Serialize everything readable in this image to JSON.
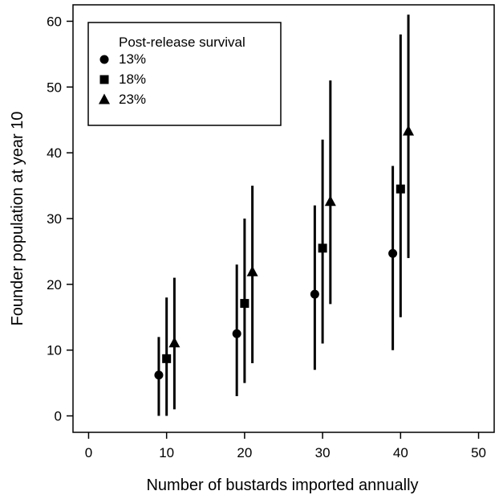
{
  "chart_data": {
    "type": "scatter",
    "xlabel": "Number of bustards imported annually",
    "ylabel": "Founder population at year 10",
    "xlim": [
      -2,
      52
    ],
    "ylim": [
      -2.5,
      62.5
    ],
    "xticks": [
      0,
      10,
      20,
      30,
      40,
      50
    ],
    "yticks": [
      0,
      10,
      20,
      30,
      40,
      50,
      60
    ],
    "legend_title": "Post-release survival",
    "legend_position": "top-left",
    "grid": false,
    "series": [
      {
        "name": "13%",
        "marker": "circle",
        "points": [
          {
            "x": 9,
            "y": 6.2,
            "low": 0,
            "high": 12
          },
          {
            "x": 19,
            "y": 12.5,
            "low": 3,
            "high": 23
          },
          {
            "x": 29,
            "y": 18.5,
            "low": 7,
            "high": 32
          },
          {
            "x": 39,
            "y": 24.7,
            "low": 10,
            "high": 38
          }
        ]
      },
      {
        "name": "18%",
        "marker": "square",
        "points": [
          {
            "x": 10,
            "y": 8.7,
            "low": 0,
            "high": 18
          },
          {
            "x": 20,
            "y": 17.1,
            "low": 5,
            "high": 30
          },
          {
            "x": 30,
            "y": 25.5,
            "low": 11,
            "high": 42
          },
          {
            "x": 40,
            "y": 34.5,
            "low": 15,
            "high": 58
          }
        ]
      },
      {
        "name": "23%",
        "marker": "triangle",
        "points": [
          {
            "x": 11,
            "y": 11.1,
            "low": 1,
            "high": 21
          },
          {
            "x": 21,
            "y": 21.9,
            "low": 8,
            "high": 35
          },
          {
            "x": 31,
            "y": 32.6,
            "low": 17,
            "high": 51
          },
          {
            "x": 41,
            "y": 43.3,
            "low": 24,
            "high": 61
          }
        ]
      }
    ]
  }
}
